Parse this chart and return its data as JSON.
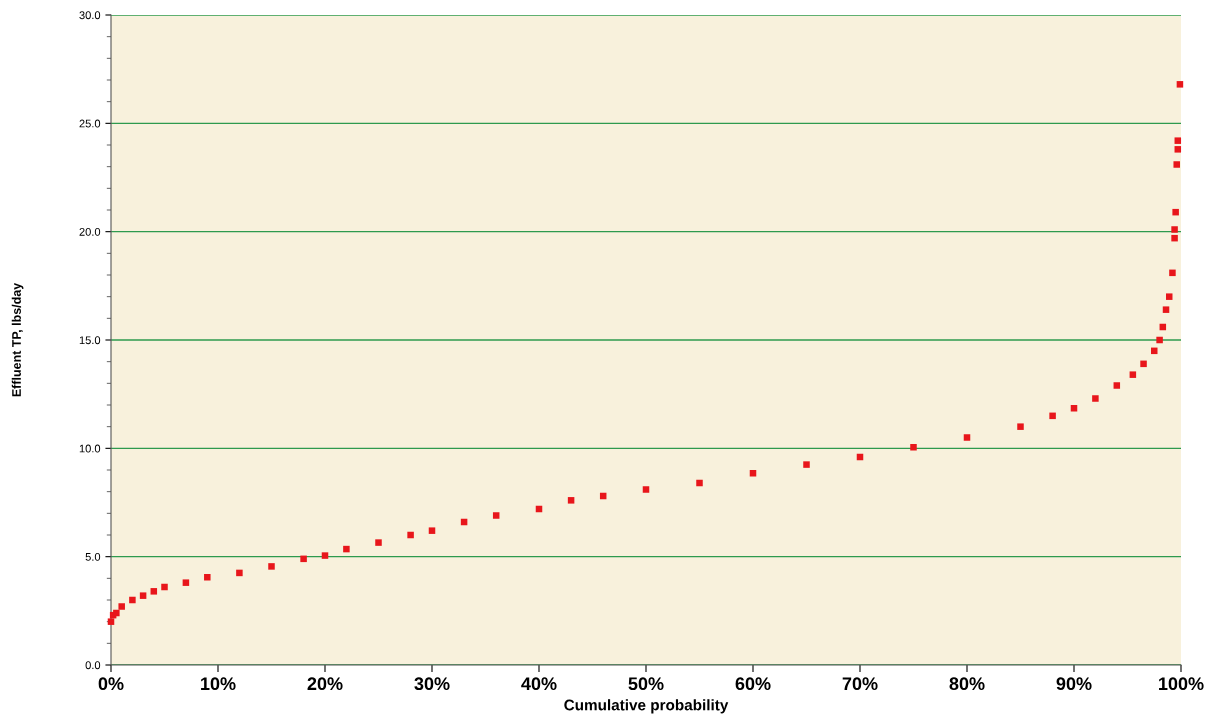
{
  "chart_data": {
    "type": "scatter",
    "xlabel": "Cumulative probability",
    "ylabel": "Effluent TP, lbs/day",
    "xlim": [
      0,
      100
    ],
    "xticks": [
      {
        "value": 0,
        "label": "0%"
      },
      {
        "value": 10,
        "label": "10%"
      },
      {
        "value": 20,
        "label": "20%"
      },
      {
        "value": 30,
        "label": "30%"
      },
      {
        "value": 40,
        "label": "40%"
      },
      {
        "value": 50,
        "label": "50%"
      },
      {
        "value": 60,
        "label": "60%"
      },
      {
        "value": 70,
        "label": "70%"
      },
      {
        "value": 80,
        "label": "80%"
      },
      {
        "value": 90,
        "label": "90%"
      },
      {
        "value": 100,
        "label": "100%"
      }
    ],
    "ylim": [
      0,
      30
    ],
    "yticks": [
      {
        "value": 0,
        "label": "0.0"
      },
      {
        "value": 5,
        "label": "5.0"
      },
      {
        "value": 10,
        "label": "10.0"
      },
      {
        "value": 15,
        "label": "15.0"
      },
      {
        "value": 20,
        "label": "20.0"
      },
      {
        "value": 25,
        "label": "25.0"
      },
      {
        "value": 30,
        "label": "30.0"
      }
    ],
    "grid": "y",
    "marker": "square",
    "series": [
      {
        "color": "#e8161b",
        "x": [
          0,
          0.2,
          0.5,
          1,
          2,
          3,
          4,
          5,
          7,
          9,
          12,
          15,
          18,
          20,
          22,
          25,
          28,
          30,
          33,
          36,
          40,
          43,
          46,
          50,
          55,
          60,
          65,
          70,
          75,
          80,
          85,
          88,
          90,
          92,
          94,
          95.5,
          96.5,
          97.5,
          98,
          98.3,
          98.6,
          98.9,
          99.2,
          99.4,
          99.4,
          99.5,
          99.6,
          99.7,
          99.7,
          99.9
        ],
        "values": [
          2.0,
          2.3,
          2.4,
          2.7,
          3.0,
          3.2,
          3.4,
          3.6,
          3.8,
          4.05,
          4.25,
          4.55,
          4.9,
          5.05,
          5.35,
          5.65,
          6.0,
          6.2,
          6.6,
          6.9,
          7.2,
          7.6,
          7.8,
          8.1,
          8.4,
          8.85,
          9.25,
          9.6,
          10.05,
          10.5,
          11.0,
          11.5,
          11.85,
          12.3,
          12.9,
          13.4,
          13.9,
          14.5,
          15.0,
          15.6,
          16.4,
          17.0,
          18.1,
          19.7,
          20.1,
          20.9,
          23.1,
          23.8,
          24.2,
          26.8
        ]
      }
    ]
  }
}
